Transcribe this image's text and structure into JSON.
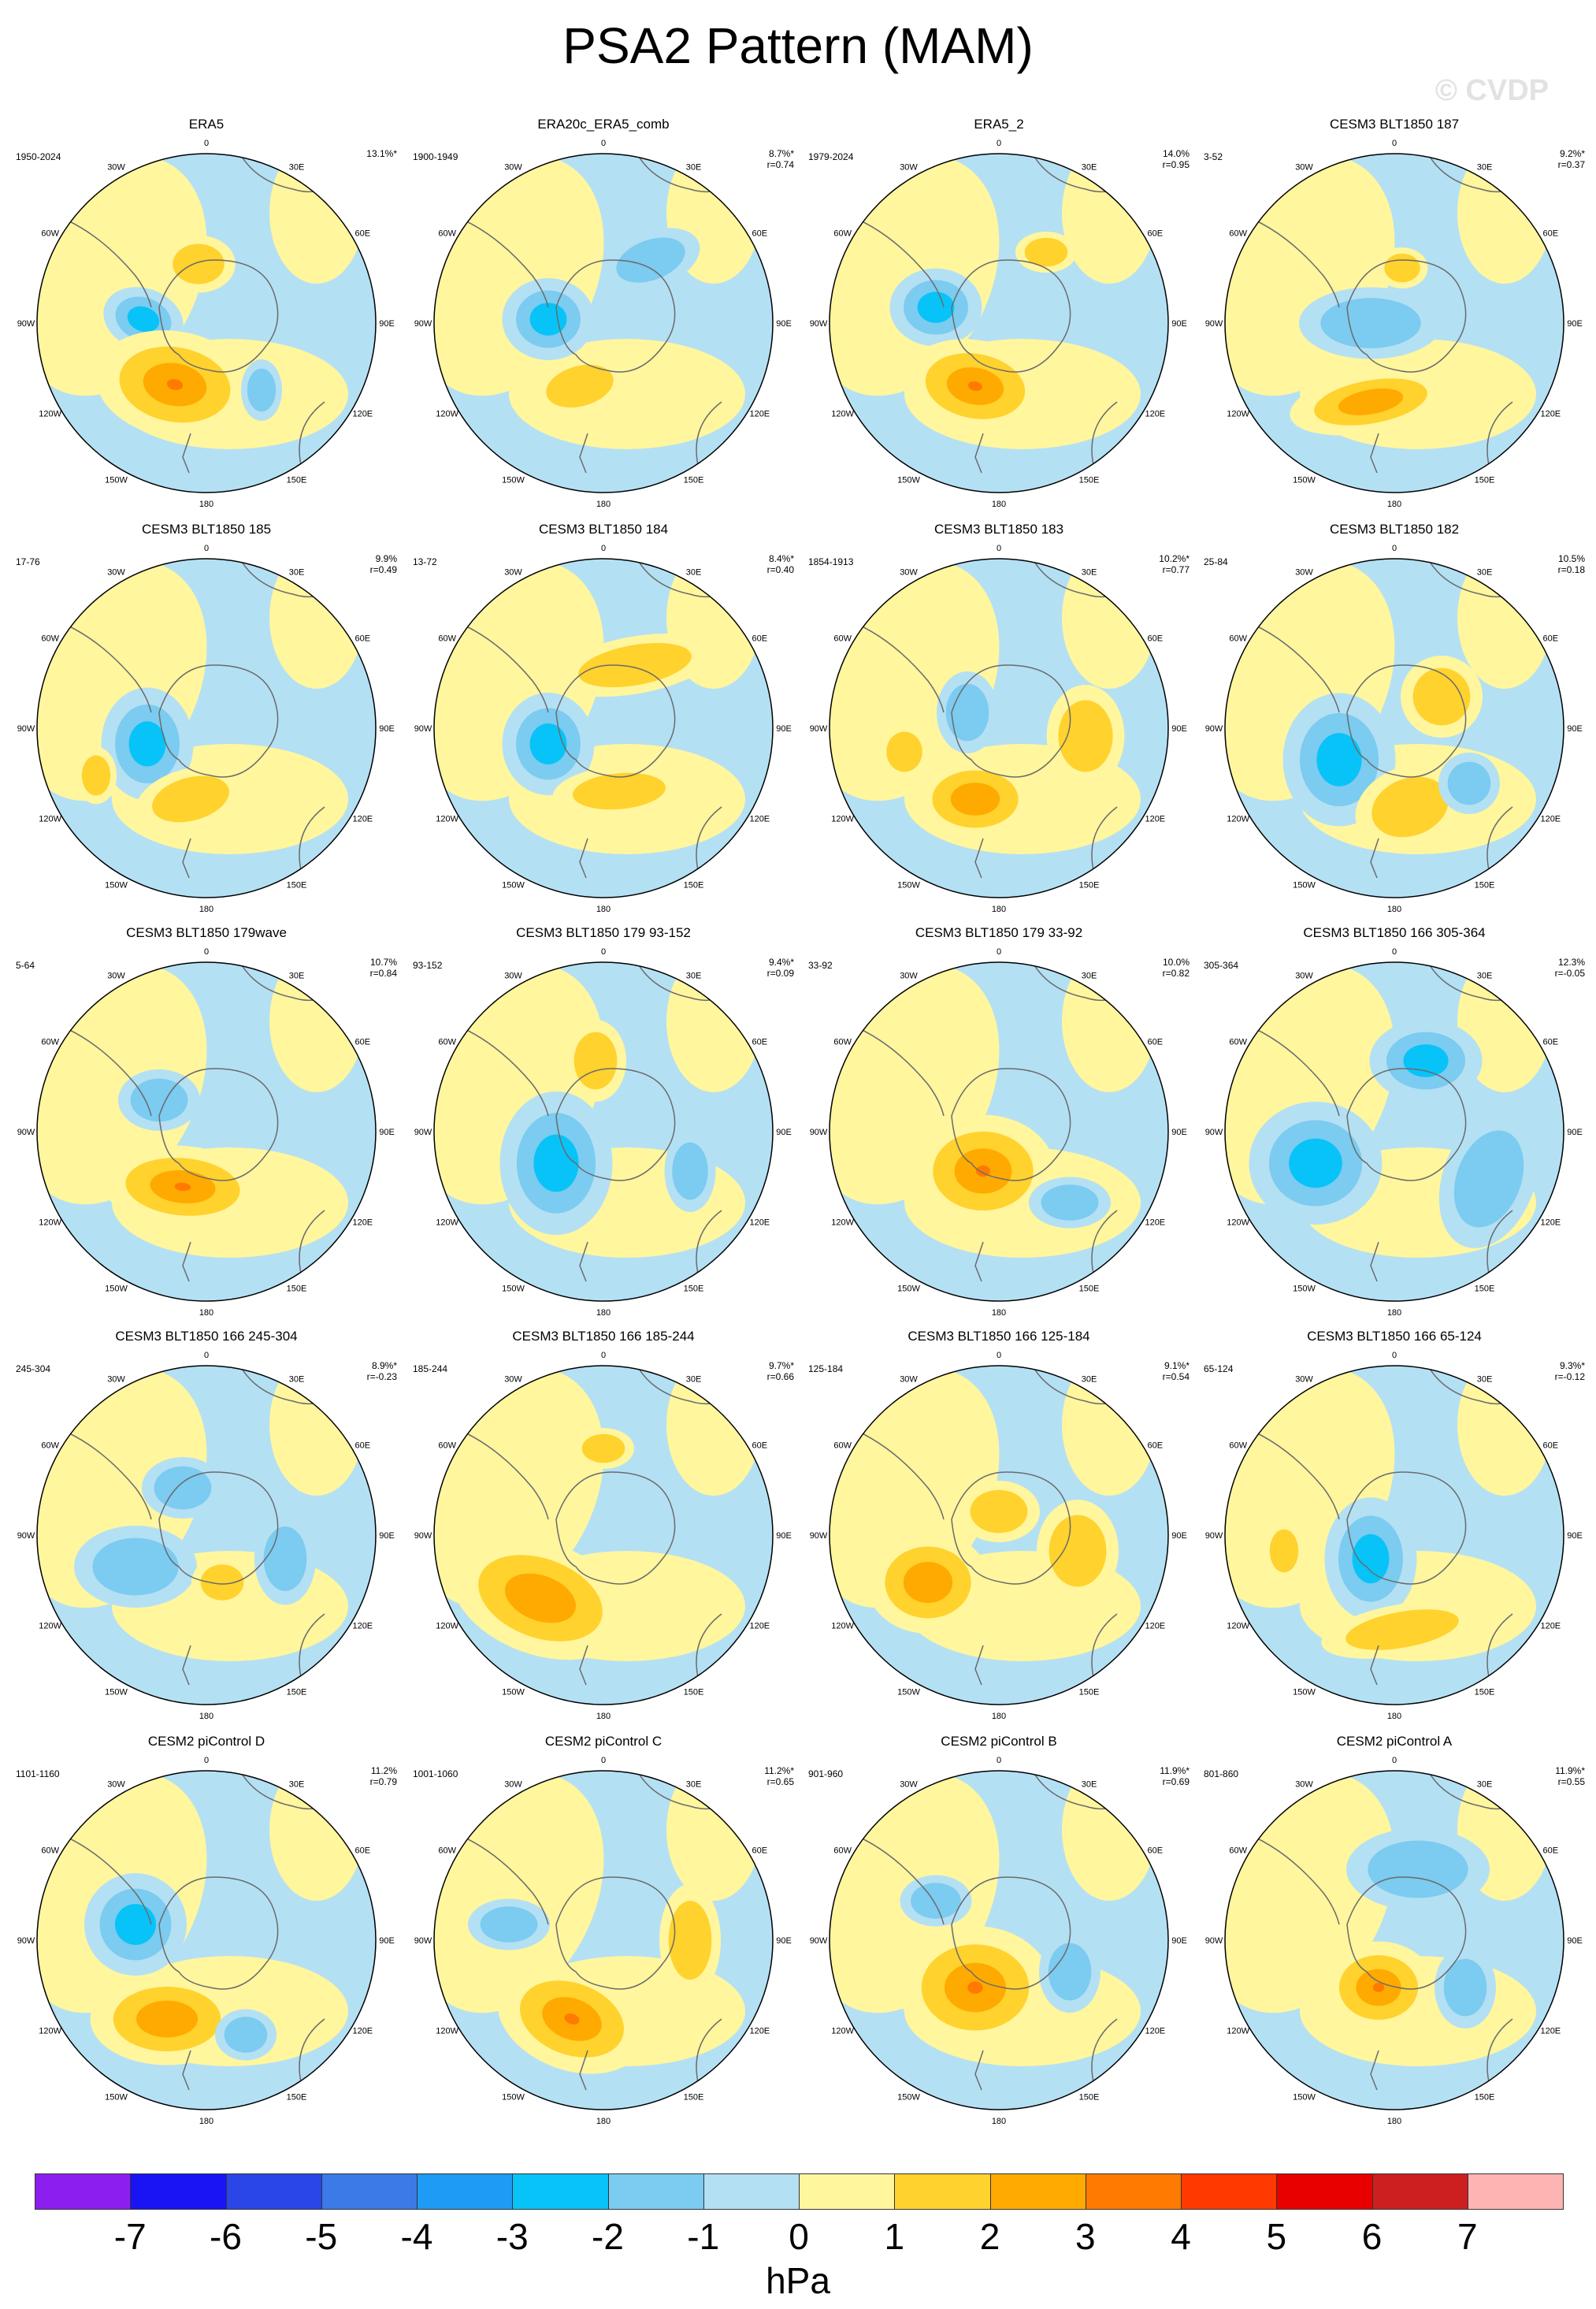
{
  "title": "PSA2 Pattern (MAM)",
  "watermark": "© CVDP",
  "longitude_labels": [
    "0",
    "30E",
    "60E",
    "90E",
    "120E",
    "150E",
    "180",
    "150W",
    "120W",
    "90W",
    "60W",
    "30W"
  ],
  "panels": [
    {
      "title": "ERA5",
      "years": "1950-2024",
      "pct": "13.1%*",
      "r": ""
    },
    {
      "title": "ERA20c_ERA5_comb",
      "years": "1900-1949",
      "pct": "8.7%*",
      "r": "r=0.74"
    },
    {
      "title": "ERA5_2",
      "years": "1979-2024",
      "pct": "14.0%",
      "r": "r=0.95"
    },
    {
      "title": "CESM3 BLT1850 187",
      "years": "3-52",
      "pct": "9.2%*",
      "r": "r=0.37"
    },
    {
      "title": "CESM3 BLT1850 185",
      "years": "17-76",
      "pct": "9.9%",
      "r": "r=0.49"
    },
    {
      "title": "CESM3 BLT1850 184",
      "years": "13-72",
      "pct": "8.4%*",
      "r": "r=0.40"
    },
    {
      "title": "CESM3 BLT1850 183",
      "years": "1854-1913",
      "pct": "10.2%*",
      "r": "r=0.77"
    },
    {
      "title": "CESM3 BLT1850 182",
      "years": "25-84",
      "pct": "10.5%",
      "r": "r=0.18"
    },
    {
      "title": "CESM3 BLT1850 179wave",
      "years": "5-64",
      "pct": "10.7%",
      "r": "r=0.84"
    },
    {
      "title": "CESM3 BLT1850 179 93-152",
      "years": "93-152",
      "pct": "9.4%*",
      "r": "r=0.09"
    },
    {
      "title": "CESM3 BLT1850 179 33-92",
      "years": "33-92",
      "pct": "10.0%",
      "r": "r=0.82"
    },
    {
      "title": "CESM3 BLT1850 166 305-364",
      "years": "305-364",
      "pct": "12.3%",
      "r": "r=-0.05"
    },
    {
      "title": "CESM3 BLT1850 166 245-304",
      "years": "245-304",
      "pct": "8.9%*",
      "r": "r=-0.23"
    },
    {
      "title": "CESM3 BLT1850 166 185-244",
      "years": "185-244",
      "pct": "9.7%*",
      "r": "r=0.66"
    },
    {
      "title": "CESM3 BLT1850 166 125-184",
      "years": "125-184",
      "pct": "9.1%*",
      "r": "r=0.54"
    },
    {
      "title": "CESM3 BLT1850 166 65-124",
      "years": "65-124",
      "pct": "9.3%*",
      "r": "r=-0.12"
    },
    {
      "title": "CESM2 piControl D",
      "years": "1101-1160",
      "pct": "11.2%",
      "r": "r=0.79"
    },
    {
      "title": "CESM2 piControl C",
      "years": "1001-1060",
      "pct": "11.2%*",
      "r": "r=0.65"
    },
    {
      "title": "CESM2 piControl B",
      "years": "901-960",
      "pct": "11.9%*",
      "r": "r=0.69"
    },
    {
      "title": "CESM2 piControl A",
      "years": "801-860",
      "pct": "11.9%*",
      "r": "r=0.55"
    }
  ],
  "colorbar": {
    "colors": [
      "#8c1ff0",
      "#1a14f5",
      "#2a46e6",
      "#3c7ae8",
      "#1e9bf5",
      "#08c3f7",
      "#7ccbf0",
      "#b4e0f4",
      "#fff69e",
      "#ffd22e",
      "#ffaa00",
      "#ff7a00",
      "#ff3a00",
      "#e80000",
      "#cd1f1f",
      "#ffb4b4"
    ],
    "ticks": [
      "-7",
      "-6",
      "-5",
      "-4",
      "-3",
      "-2",
      "-1",
      "0",
      "1",
      "2",
      "3",
      "4",
      "5",
      "6",
      "7"
    ],
    "units": "hPa"
  }
}
